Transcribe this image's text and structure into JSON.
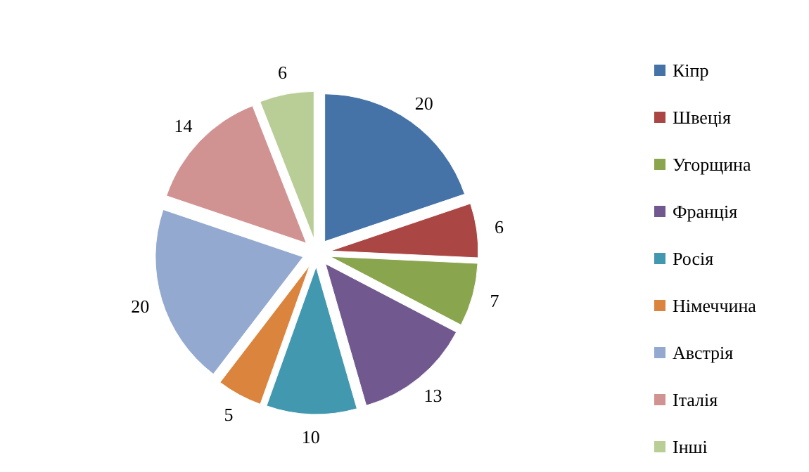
{
  "chart_data": {
    "type": "pie",
    "categories": [
      "Кіпр",
      "Швеція",
      "Угорщина",
      "Франція",
      "Росія",
      "Німеччина",
      "Австрія",
      "Італія",
      "Інші"
    ],
    "values": [
      20,
      6,
      7,
      13,
      10,
      5,
      20,
      14,
      6
    ],
    "colors": [
      "#4572a7",
      "#aa4643",
      "#89a54e",
      "#71588f",
      "#4198af",
      "#db843d",
      "#93a9cf",
      "#d19392",
      "#b9cd96"
    ],
    "data_labels": true,
    "legend": "right"
  }
}
